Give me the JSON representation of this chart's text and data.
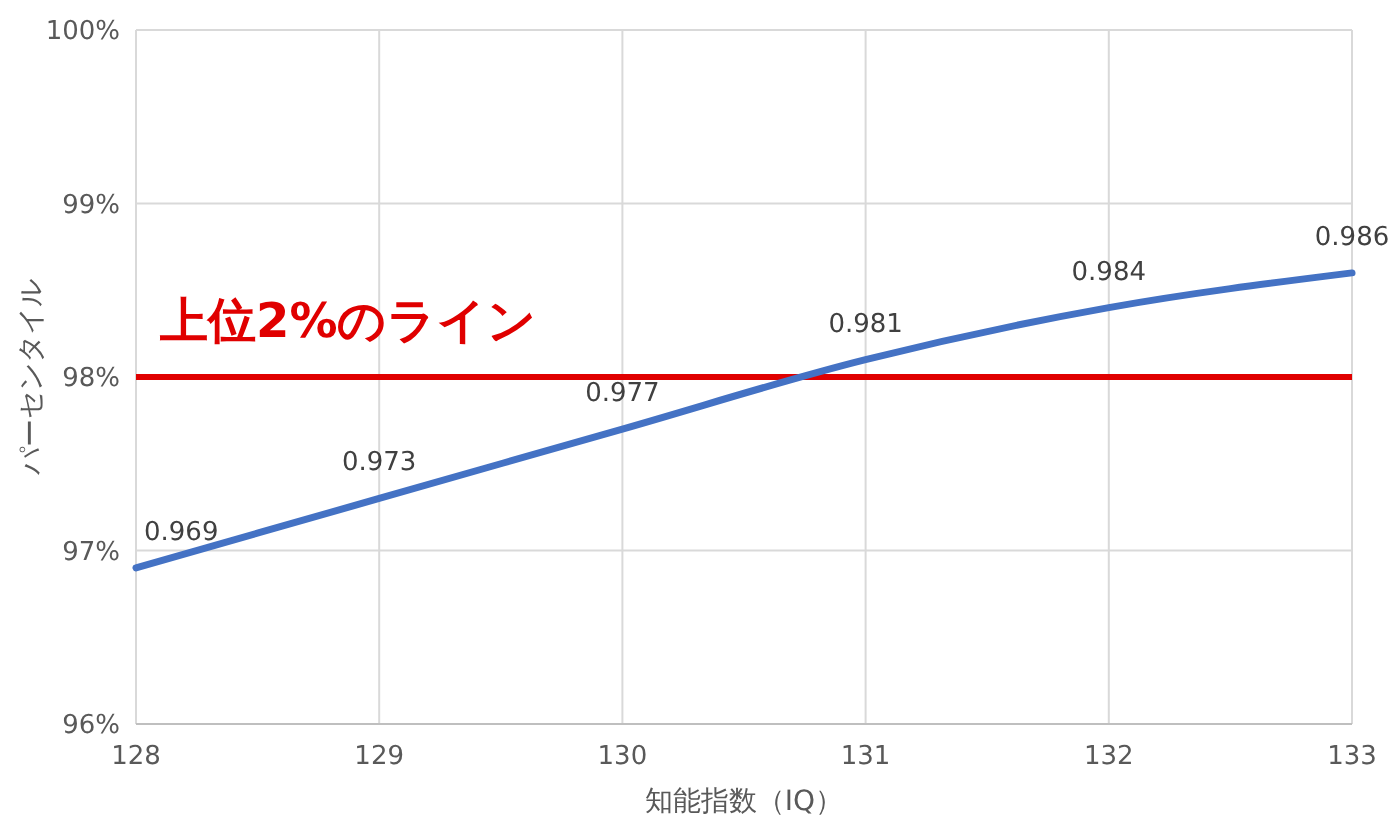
{
  "chart_data": {
    "type": "line",
    "xlabel": "知能指数（IQ）",
    "ylabel": "パーセンタイル",
    "x": [
      128,
      129,
      130,
      131,
      132,
      133
    ],
    "series": [
      {
        "color": "#4472c4",
        "values": [
          0.969,
          0.973,
          0.977,
          0.981,
          0.984,
          0.986
        ]
      }
    ],
    "data_labels": true,
    "xlim": [
      128,
      133
    ],
    "xticks": [
      128,
      129,
      130,
      131,
      132,
      133
    ],
    "ylim": [
      0.96,
      1
    ],
    "yticks": [
      {
        "value": 0.96,
        "label": "96%"
      },
      {
        "value": 0.97,
        "label": "97%"
      },
      {
        "value": 0.98,
        "label": "98%"
      },
      {
        "value": 0.99,
        "label": "99%"
      },
      {
        "value": 1,
        "label": "100%"
      }
    ],
    "grid": true,
    "ref_lines": [
      {
        "axis": "y",
        "value": 0.98,
        "label": "上位2%のライン",
        "color": "#e00000"
      }
    ]
  }
}
